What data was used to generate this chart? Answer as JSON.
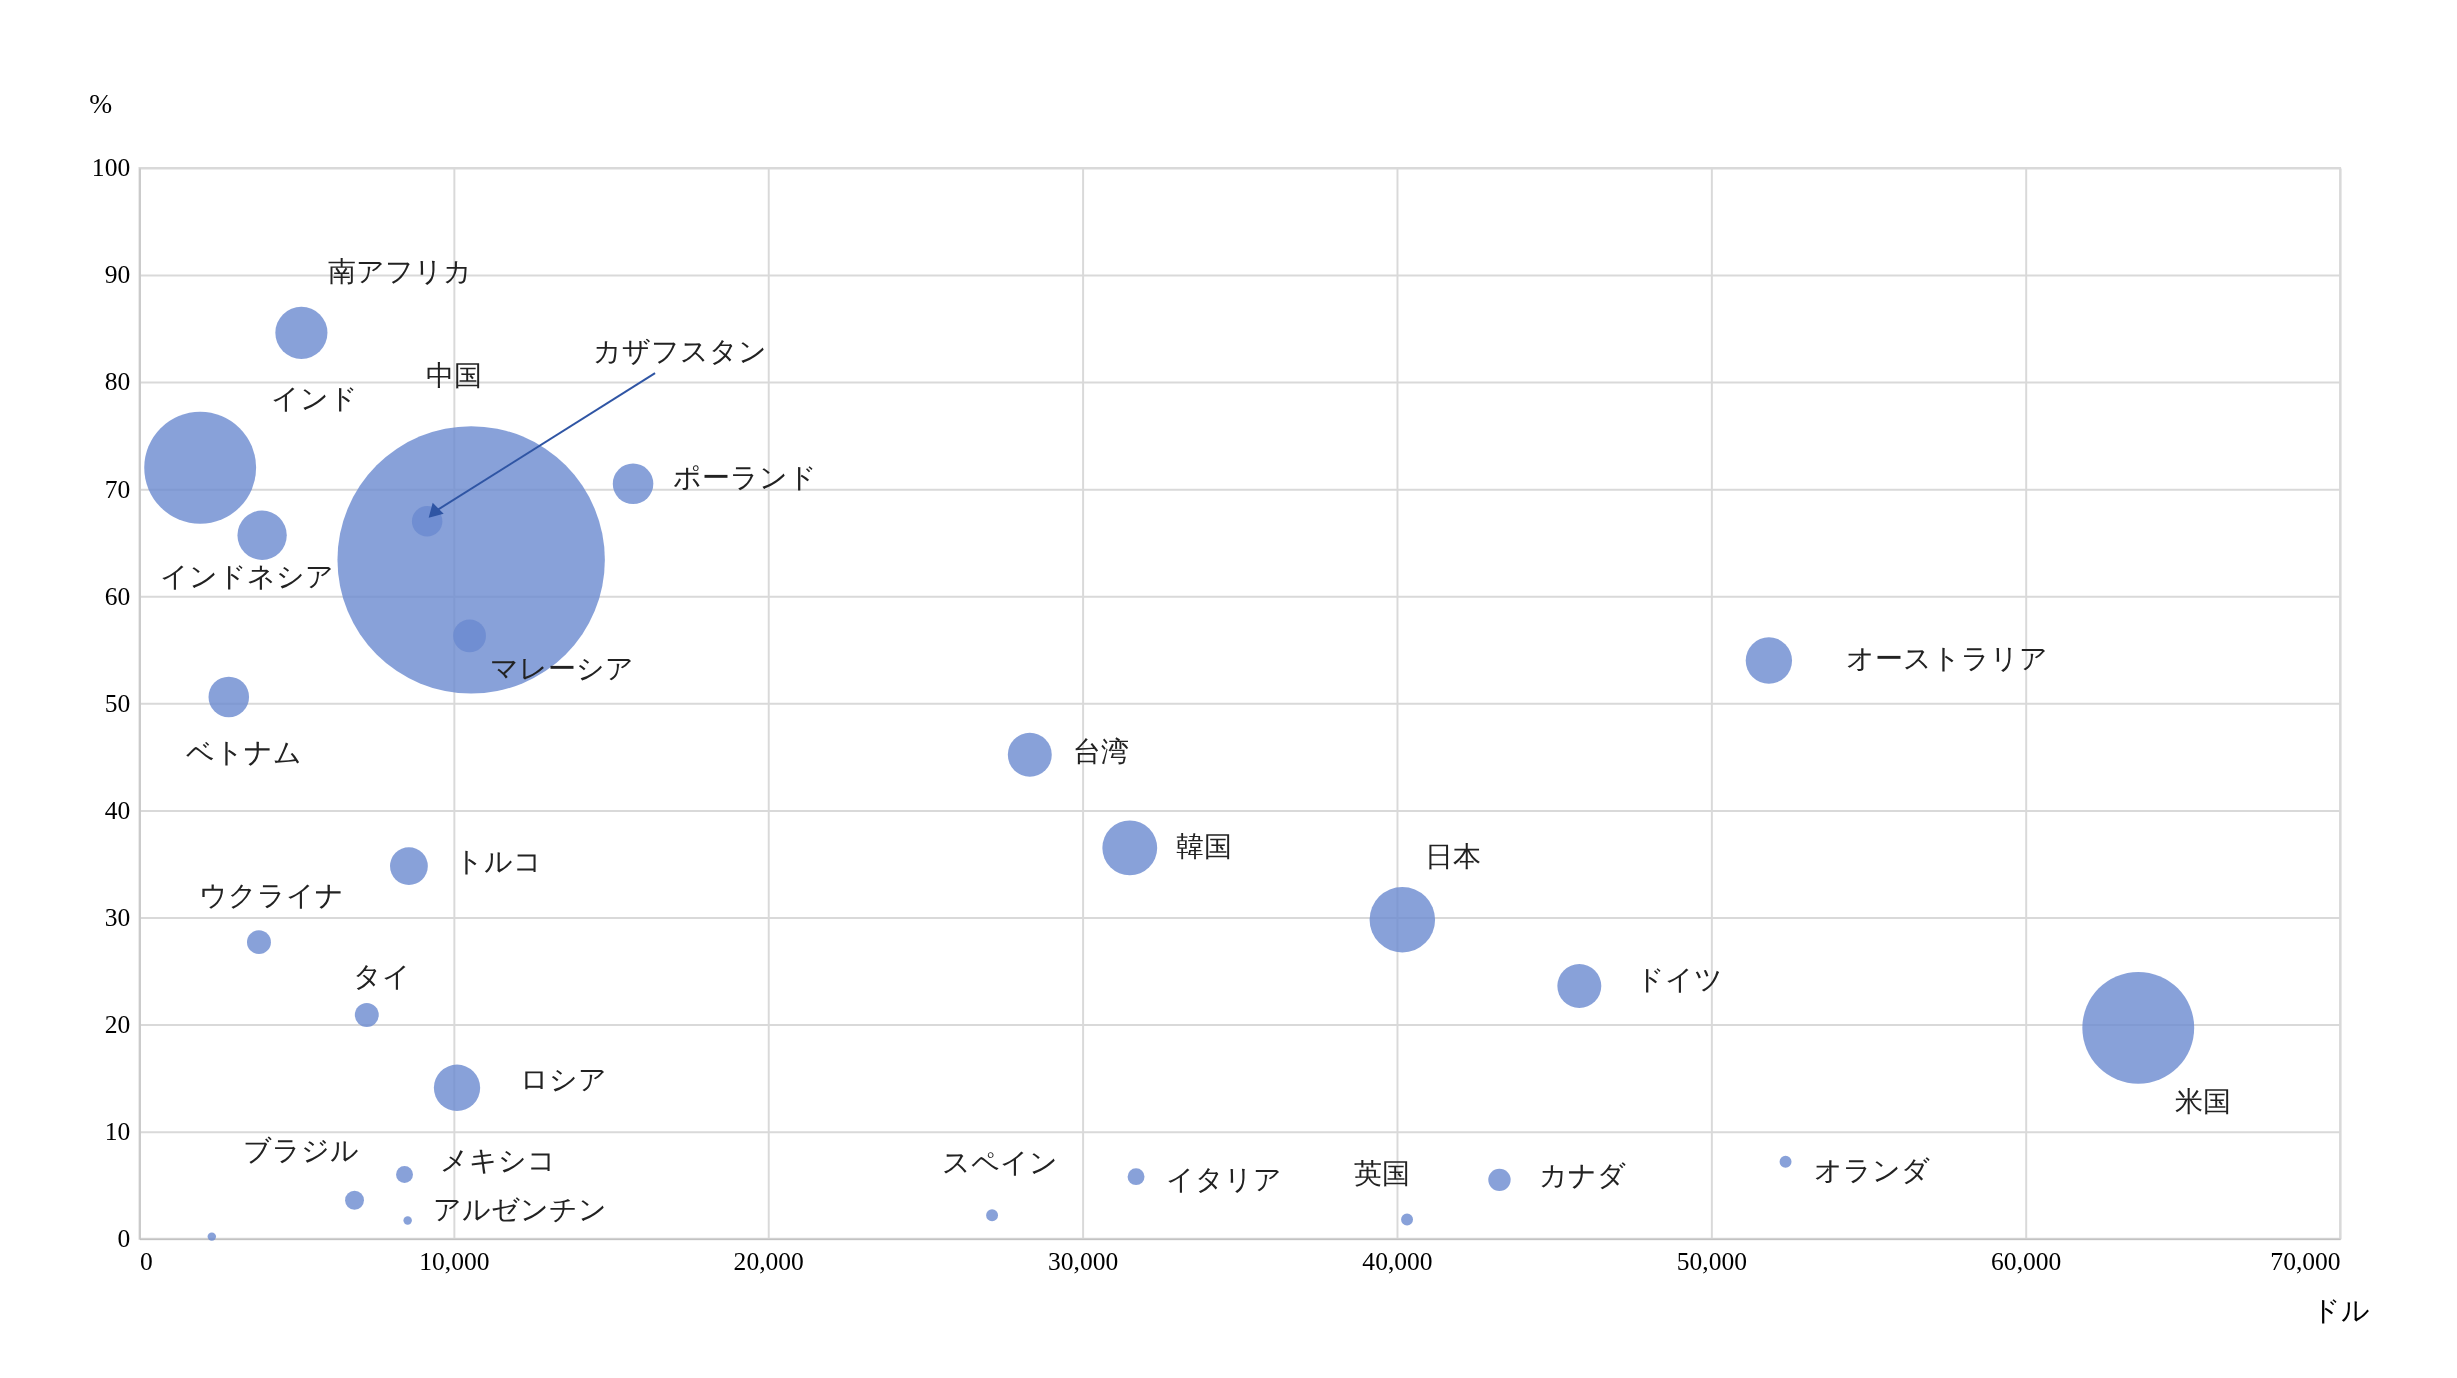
{
  "chart_data": {
    "type": "bubble",
    "xlabel": "ドル",
    "ylabel": "%",
    "xlim": [
      0,
      70000
    ],
    "ylim": [
      0,
      100
    ],
    "xticks": [
      0,
      {
        "value": 10000,
        "label": "10,000"
      },
      {
        "value": 20000,
        "label": "20,000"
      },
      {
        "value": 30000,
        "label": "30,000"
      },
      {
        "value": 40000,
        "label": "40,000"
      },
      {
        "value": 50000,
        "label": "50,000"
      },
      {
        "value": 60000,
        "label": "60,000"
      },
      {
        "value": 70000,
        "label": "70,000"
      }
    ],
    "yticks": [
      0,
      10,
      20,
      30,
      40,
      50,
      60,
      70,
      80,
      90,
      100
    ],
    "grid": true,
    "series": [
      {
        "name": "南アフリカ",
        "color": "#6a8ad0",
        "x": [
          5150
        ],
        "values": [
          84.6
        ],
        "sizes": [
          0.038
        ]
      },
      {
        "name": "インド",
        "color": "#6a8ad0",
        "x": [
          1930
        ],
        "values": [
          72.0
        ],
        "sizes": [
          0.175
        ]
      },
      {
        "name": "中国",
        "color": "#6a8ad0",
        "x": [
          10550
        ],
        "values": [
          63.4
        ],
        "sizes": [
          1
        ]
      },
      {
        "name": "カザフスタン",
        "color": "#6a8ad0",
        "x": [
          9150
        ],
        "values": [
          67.0
        ],
        "sizes": [
          0.013
        ]
      },
      {
        "name": "マレーシア",
        "color": "#6a8ad0",
        "x": [
          10500
        ],
        "values": [
          56.3
        ],
        "sizes": [
          0.015
        ]
      },
      {
        "name": "ポーランド",
        "color": "#6a8ad0",
        "x": [
          15700
        ],
        "values": [
          70.5
        ],
        "sizes": [
          0.023
        ]
      },
      {
        "name": "インドネシア",
        "color": "#6a8ad0",
        "x": [
          3900
        ],
        "values": [
          65.7
        ],
        "sizes": [
          0.034
        ]
      },
      {
        "name": "ベトナム",
        "color": "#6a8ad0",
        "x": [
          2840
        ],
        "values": [
          50.6
        ],
        "sizes": [
          0.023
        ]
      },
      {
        "name": "台湾",
        "color": "#6a8ad0",
        "x": [
          28320
        ],
        "values": [
          45.2
        ],
        "sizes": [
          0.027
        ]
      },
      {
        "name": "韓国",
        "color": "#6a8ad0",
        "x": [
          31500
        ],
        "values": [
          36.5
        ],
        "sizes": [
          0.042
        ]
      },
      {
        "name": "日本",
        "color": "#6a8ad0",
        "x": [
          40170
        ],
        "values": [
          29.8
        ],
        "sizes": [
          0.06
        ]
      },
      {
        "name": "ドイツ",
        "color": "#6a8ad0",
        "x": [
          45800
        ],
        "values": [
          23.6
        ],
        "sizes": [
          0.027
        ]
      },
      {
        "name": "米国",
        "color": "#6a8ad0",
        "x": [
          63580
        ],
        "values": [
          19.7
        ],
        "sizes": [
          0.175
        ]
      },
      {
        "name": "オーストラリア",
        "color": "#6a8ad0",
        "x": [
          51830
        ],
        "values": [
          54.0
        ],
        "sizes": [
          0.03
        ]
      },
      {
        "name": "トルコ",
        "color": "#6a8ad0",
        "x": [
          8570
        ],
        "values": [
          34.8
        ],
        "sizes": [
          0.02
        ]
      },
      {
        "name": "ウクライナ",
        "color": "#6a8ad0",
        "x": [
          3800
        ],
        "values": [
          27.7
        ],
        "sizes": [
          0.008
        ]
      },
      {
        "name": "タイ",
        "color": "#6a8ad0",
        "x": [
          7230
        ],
        "values": [
          20.9
        ],
        "sizes": [
          0.008
        ]
      },
      {
        "name": "ロシア",
        "color": "#6a8ad0",
        "x": [
          10100
        ],
        "values": [
          14.1
        ],
        "sizes": [
          0.03
        ]
      },
      {
        "name": "ブラジル",
        "color": "#6a8ad0",
        "x": [
          6840
        ],
        "values": [
          3.6
        ],
        "sizes": [
          0.005
        ]
      },
      {
        "name": "メキシコ",
        "color": "#6a8ad0",
        "x": [
          8430
        ],
        "values": [
          6.0
        ],
        "sizes": [
          0.004
        ]
      },
      {
        "name": "アルゼンチン",
        "color": "#6a8ad0",
        "x": [
          8530
        ],
        "values": [
          1.7
        ],
        "sizes": [
          0.001
        ]
      },
      {
        "name": "スペイン",
        "color": "#6a8ad0",
        "x": [
          27120
        ],
        "values": [
          2.2
        ],
        "sizes": [
          0.002
        ]
      },
      {
        "name": "イタリア",
        "color": "#6a8ad0",
        "x": [
          31700
        ],
        "values": [
          5.8
        ],
        "sizes": [
          0.004
        ]
      },
      {
        "name": "英国",
        "color": "#6a8ad0",
        "x": [
          40320
        ],
        "values": [
          1.8
        ],
        "sizes": [
          0.002
        ]
      },
      {
        "name": "カナダ",
        "color": "#6a8ad0",
        "x": [
          43260
        ],
        "values": [
          5.5
        ],
        "sizes": [
          0.007
        ]
      },
      {
        "name": "オランダ",
        "color": "#6a8ad0",
        "x": [
          52360
        ],
        "values": [
          7.2
        ],
        "sizes": [
          0.002
        ]
      },
      {
        "color": "#6a8ad0",
        "x": [
          2300
        ],
        "values": [
          0.2
        ],
        "sizes": [
          0.001
        ]
      }
    ]
  }
}
